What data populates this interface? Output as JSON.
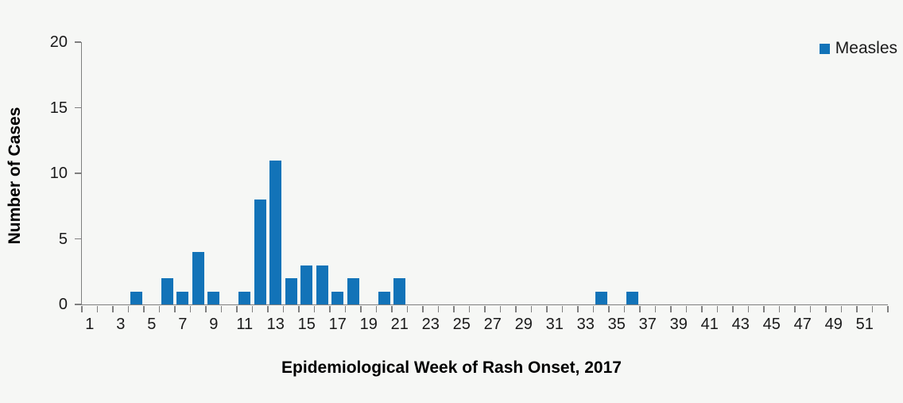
{
  "chart_data": {
    "type": "bar",
    "title": "",
    "xlabel": "Epidemiological Week of Rash Onset, 2017",
    "ylabel": "Number of Cases",
    "series_name": "Measles",
    "bar_color": "#1273b8",
    "axis_color": "#7f7f7f",
    "background_color": "#f6f7f5",
    "grid": false,
    "legend_position": "top-right",
    "ylim": [
      0,
      20
    ],
    "yticks": [
      0,
      5,
      10,
      15,
      20
    ],
    "xtick_labels": [
      1,
      3,
      5,
      7,
      9,
      11,
      13,
      15,
      17,
      19,
      21,
      23,
      25,
      27,
      29,
      31,
      33,
      35,
      37,
      39,
      41,
      43,
      45,
      47,
      49,
      51
    ],
    "categories": [
      1,
      2,
      3,
      4,
      5,
      6,
      7,
      8,
      9,
      10,
      11,
      12,
      13,
      14,
      15,
      16,
      17,
      18,
      19,
      20,
      21,
      22,
      23,
      24,
      25,
      26,
      27,
      28,
      29,
      30,
      31,
      32,
      33,
      34,
      35,
      36,
      37,
      38,
      39,
      40,
      41,
      42,
      43,
      44,
      45,
      46,
      47,
      48,
      49,
      50,
      51,
      52
    ],
    "values": [
      0,
      0,
      0,
      1,
      0,
      2,
      1,
      4,
      1,
      0,
      1,
      8,
      11,
      2,
      3,
      3,
      1,
      2,
      0,
      1,
      2,
      0,
      0,
      0,
      0,
      0,
      0,
      0,
      0,
      0,
      0,
      0,
      0,
      1,
      0,
      1,
      0,
      0,
      0,
      0,
      0,
      0,
      0,
      0,
      0,
      0,
      0,
      0,
      0,
      0,
      0,
      0
    ]
  }
}
